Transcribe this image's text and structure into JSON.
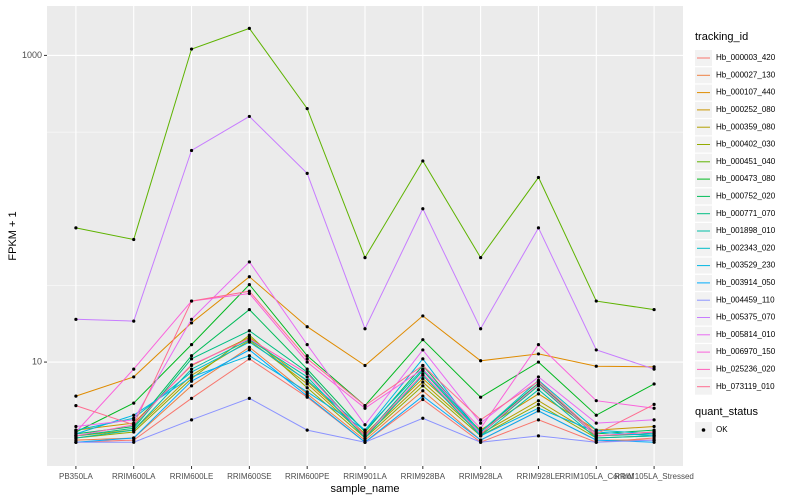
{
  "chart_data": {
    "type": "line",
    "xlabel": "sample_name",
    "ylabel": "FPKM + 1",
    "y_scale": "log10",
    "ylim": [
      2.1,
      2100
    ],
    "yticks": [
      10,
      1000
    ],
    "ytick_labels": [
      "10",
      "1000"
    ],
    "categories": [
      "PB350LA",
      "RRIM600LA",
      "RRIM600LE",
      "RRIM600SE",
      "RRIM600PE",
      "RRIM901LA",
      "RRIM928BA",
      "RRIM928LA",
      "RRIM928LE",
      "RRIM105LA_Control",
      "RRIM105LA_Stressed"
    ],
    "series": [
      {
        "name": "Hb_000003_420",
        "color": "#F8766D",
        "values": [
          3.0,
          3.1,
          5.8,
          10.5,
          5.9,
          3.0,
          5.7,
          3.0,
          4.2,
          3.0,
          3.2
        ]
      },
      {
        "name": "Hb_000027_130",
        "color": "#EE8043",
        "values": [
          3.1,
          3.2,
          7.0,
          12.5,
          6.2,
          3.1,
          6.5,
          3.1,
          4.8,
          3.1,
          3.1
        ]
      },
      {
        "name": "Hb_000107_440",
        "color": "#DF8B00",
        "values": [
          6.0,
          8.0,
          18.0,
          36.0,
          17.0,
          9.5,
          20.0,
          10.2,
          11.3,
          9.4,
          9.3
        ]
      },
      {
        "name": "Hb_000252_080",
        "color": "#CB9600",
        "values": [
          3.6,
          4.0,
          9.5,
          14.5,
          7.5,
          3.4,
          7.8,
          3.6,
          6.2,
          3.6,
          3.8
        ]
      },
      {
        "name": "Hb_000359_080",
        "color": "#B2A000",
        "values": [
          3.3,
          3.6,
          8.2,
          13.8,
          7.2,
          3.3,
          7.4,
          3.4,
          5.6,
          3.3,
          3.5
        ]
      },
      {
        "name": "Hb_000402_030",
        "color": "#93AA00",
        "values": [
          3.2,
          3.5,
          7.8,
          15.0,
          6.8,
          3.2,
          7.0,
          3.3,
          5.3,
          3.2,
          3.3
        ]
      },
      {
        "name": "Hb_000451_040",
        "color": "#5EB300",
        "values": [
          75.0,
          63.0,
          1100.0,
          1500.0,
          450.0,
          48.0,
          205.0,
          48.0,
          160.0,
          25.0,
          22.0
        ]
      },
      {
        "name": "Hb_000473_080",
        "color": "#00B81F",
        "values": [
          3.5,
          5.4,
          13.0,
          32.0,
          11.0,
          5.2,
          14.0,
          5.9,
          10.0,
          4.5,
          7.2
        ]
      },
      {
        "name": "Hb_000752_020",
        "color": "#00BC59",
        "values": [
          3.4,
          3.8,
          11.0,
          22.0,
          9.0,
          3.5,
          9.5,
          3.5,
          7.3,
          3.4,
          3.6
        ]
      },
      {
        "name": "Hb_000771_070",
        "color": "#00BE83",
        "values": [
          3.3,
          3.7,
          10.5,
          16.0,
          8.6,
          3.3,
          8.8,
          3.4,
          7.0,
          3.3,
          3.4
        ]
      },
      {
        "name": "Hb_001898_010",
        "color": "#00BFA7",
        "values": [
          3.2,
          3.6,
          9.0,
          14.0,
          8.0,
          3.2,
          8.2,
          3.3,
          6.6,
          3.2,
          3.3
        ]
      },
      {
        "name": "Hb_002343_020",
        "color": "#00BCC7",
        "values": [
          3.6,
          4.3,
          8.6,
          13.5,
          7.6,
          3.6,
          9.0,
          3.5,
          7.6,
          3.6,
          3.4
        ]
      },
      {
        "name": "Hb_003529_230",
        "color": "#00B6E3",
        "values": [
          3.4,
          4.5,
          8.0,
          11.0,
          6.4,
          3.6,
          10.5,
          3.3,
          5.0,
          3.5,
          3.3
        ]
      },
      {
        "name": "Hb_003914_050",
        "color": "#00ACFC",
        "values": [
          3.0,
          3.2,
          7.5,
          12.0,
          6.0,
          3.0,
          6.0,
          3.1,
          4.8,
          3.1,
          3.0
        ]
      },
      {
        "name": "Hb_004459_110",
        "color": "#8B93FF",
        "values": [
          3.0,
          3.0,
          4.2,
          5.8,
          3.6,
          3.0,
          4.3,
          3.0,
          3.3,
          3.0,
          3.1
        ]
      },
      {
        "name": "Hb_005375_070",
        "color": "#C77CFF",
        "values": [
          19.0,
          18.5,
          240.0,
          400.0,
          170.0,
          16.5,
          100.0,
          16.5,
          75.0,
          12.0,
          9.0
        ]
      },
      {
        "name": "Hb_005814_010",
        "color": "#E86BF3",
        "values": [
          3.8,
          4.2,
          19.0,
          45.0,
          13.0,
          3.9,
          12.0,
          4.0,
          8.0,
          4.0,
          4.2
        ]
      },
      {
        "name": "Hb_006970_150",
        "color": "#FA62DB",
        "values": [
          3.5,
          9.0,
          25.0,
          28.0,
          10.0,
          5.0,
          9.0,
          3.7,
          13.0,
          5.6,
          5.0
        ]
      },
      {
        "name": "Hb_025236_020",
        "color": "#FF61BC",
        "values": [
          3.3,
          3.9,
          9.6,
          14.2,
          8.4,
          3.3,
          8.4,
          3.4,
          7.2,
          3.3,
          3.5
        ]
      },
      {
        "name": "Hb_073119_010",
        "color": "#FF6C91",
        "values": [
          5.2,
          3.9,
          25.0,
          29.0,
          10.5,
          5.2,
          9.5,
          4.2,
          7.5,
          3.4,
          5.3
        ]
      }
    ],
    "legend": {
      "title": "tracking_id",
      "placement": "right"
    },
    "legend2": {
      "title": "quant_status",
      "entries": [
        "OK"
      ]
    },
    "grid": true,
    "panel_background": "#EBEBEB",
    "grid_color": "#FFFFFF",
    "point_color": "#000000"
  }
}
